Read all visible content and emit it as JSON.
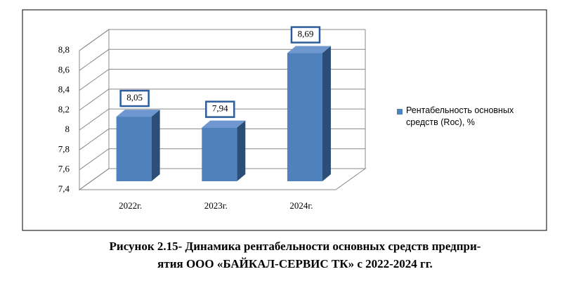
{
  "chart_data": {
    "type": "bar3d",
    "categories": [
      "2022г.",
      "2023г.",
      "2024г."
    ],
    "series": [
      {
        "name": "Рентабельность основных средств (Roc), %",
        "color": "#4f81bd",
        "values": [
          8.05,
          7.94,
          8.69
        ],
        "value_labels": [
          "8,05",
          "7,94",
          "8,69"
        ]
      }
    ],
    "ylim": [
      7.4,
      8.8
    ],
    "yticks": [
      {
        "value": 7.4,
        "label": "7,4"
      },
      {
        "value": 7.6,
        "label": "7,6"
      },
      {
        "value": 7.8,
        "label": "7,8"
      },
      8,
      {
        "value": 8.2,
        "label": "8,2"
      },
      {
        "value": 8.4,
        "label": "8,4"
      },
      {
        "value": 8.6,
        "label": "8,6"
      },
      {
        "value": 8.8,
        "label": "8,8"
      }
    ],
    "grid": true,
    "legend": "right",
    "caption": [
      "Рисунок 2.15- Динамика рентабельности основных средств предпри-",
      "ятия ООО «БАЙКАЛ-СЕРВИС ТК» с 2022-2024 гг."
    ]
  }
}
